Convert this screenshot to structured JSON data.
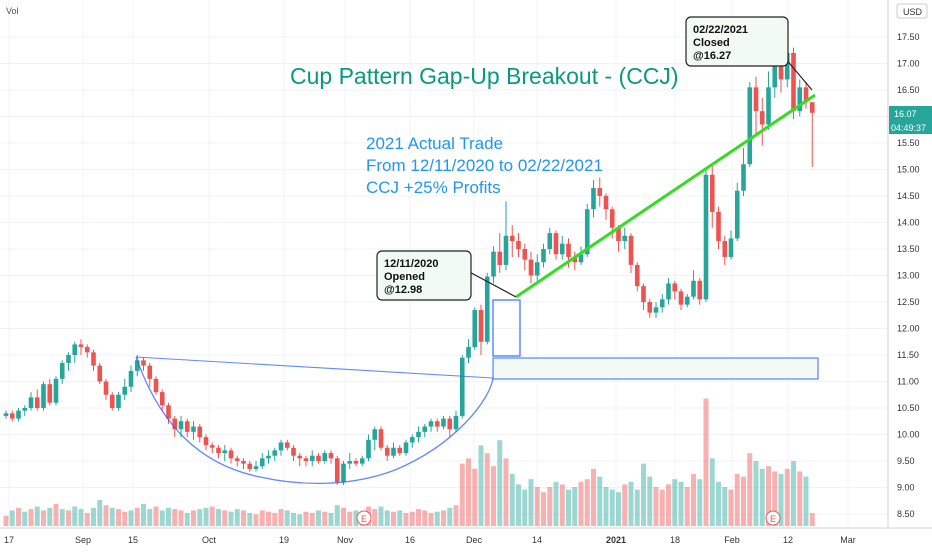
{
  "header": {
    "vol_label": "Vol",
    "currency": "USD"
  },
  "title": "Cup Pattern Gap-Up Breakout - (CCJ)",
  "trade_note": [
    "2021 Actual Trade",
    "From 12/11/2020 to 02/22/2021",
    "CCJ +25% Profits"
  ],
  "callout_open": [
    "12/11/2020",
    "Opened",
    "@12.98"
  ],
  "callout_close": [
    "02/22/2021",
    "Closed",
    "@16.27"
  ],
  "price_badge": "16.07",
  "countdown_badge": "04:49:37",
  "earnings_marker": "E",
  "colors": {
    "up": "#26a69a",
    "down": "#ef5350",
    "trend": "#33dd22",
    "note": "#2196f3",
    "title": "#089981",
    "badge": "#26a69a"
  },
  "chart_data": {
    "type": "candlestick",
    "ylim": [
      8.25,
      17.95
    ],
    "y_ticks": [
      "17.50",
      "17.00",
      "16.50",
      "16.00",
      "15.50",
      "15.00",
      "14.50",
      "14.00",
      "13.50",
      "13.00",
      "12.50",
      "12.00",
      "11.50",
      "11.00",
      "10.50",
      "10.00",
      "9.50",
      "9.00",
      "8.50"
    ],
    "x_ticks": [
      "17",
      "Sep",
      "15",
      "Oct",
      "19",
      "Nov",
      "16",
      "Dec",
      "14",
      "2021",
      "18",
      "Feb",
      "12",
      "Mar"
    ],
    "candles": [
      [
        10.35,
        10.4,
        10.3,
        10.45
      ],
      [
        10.4,
        10.3,
        10.25,
        10.45
      ],
      [
        10.3,
        10.45,
        10.25,
        10.5
      ],
      [
        10.45,
        10.5,
        10.35,
        10.55
      ],
      [
        10.5,
        10.7,
        10.45,
        10.8
      ],
      [
        10.7,
        10.5,
        10.45,
        10.85
      ],
      [
        10.5,
        10.95,
        10.45,
        11.0
      ],
      [
        10.95,
        10.6,
        10.55,
        11.05
      ],
      [
        10.6,
        11.05,
        10.55,
        11.1
      ],
      [
        11.05,
        11.35,
        10.95,
        11.4
      ],
      [
        11.35,
        11.5,
        11.2,
        11.55
      ],
      [
        11.5,
        11.7,
        11.35,
        11.75
      ],
      [
        11.7,
        11.65,
        11.5,
        11.8
      ],
      [
        11.65,
        11.55,
        11.45,
        11.7
      ],
      [
        11.55,
        11.3,
        11.2,
        11.6
      ],
      [
        11.3,
        11.0,
        10.95,
        11.35
      ],
      [
        11.0,
        10.75,
        10.65,
        11.05
      ],
      [
        10.75,
        10.5,
        10.45,
        10.8
      ],
      [
        10.5,
        10.75,
        10.45,
        10.8
      ],
      [
        10.75,
        10.9,
        10.65,
        11.05
      ],
      [
        10.9,
        11.2,
        10.8,
        11.3
      ],
      [
        11.2,
        11.4,
        11.1,
        11.5
      ],
      [
        11.4,
        11.3,
        11.2,
        11.45
      ],
      [
        11.3,
        11.05,
        10.9,
        11.35
      ],
      [
        11.05,
        10.8,
        10.75,
        11.1
      ],
      [
        10.8,
        10.55,
        10.45,
        10.85
      ],
      [
        10.55,
        10.3,
        10.2,
        10.6
      ],
      [
        10.3,
        10.1,
        9.95,
        10.35
      ],
      [
        10.1,
        10.25,
        9.95,
        10.35
      ],
      [
        10.25,
        10.05,
        9.95,
        10.3
      ],
      [
        10.05,
        10.15,
        9.9,
        10.25
      ],
      [
        10.15,
        9.95,
        9.85,
        10.2
      ],
      [
        9.95,
        9.8,
        9.7,
        10.0
      ],
      [
        9.8,
        9.75,
        9.65,
        9.85
      ],
      [
        9.75,
        9.65,
        9.55,
        9.8
      ],
      [
        9.65,
        9.7,
        9.5,
        9.8
      ],
      [
        9.7,
        9.55,
        9.45,
        9.75
      ],
      [
        9.55,
        9.5,
        9.4,
        9.6
      ],
      [
        9.5,
        9.45,
        9.35,
        9.55
      ],
      [
        9.45,
        9.35,
        9.3,
        9.5
      ],
      [
        9.35,
        9.4,
        9.3,
        9.5
      ],
      [
        9.4,
        9.55,
        9.35,
        9.65
      ],
      [
        9.55,
        9.6,
        9.45,
        9.7
      ],
      [
        9.6,
        9.7,
        9.5,
        9.75
      ],
      [
        9.7,
        9.85,
        9.6,
        9.9
      ],
      [
        9.85,
        9.75,
        9.7,
        9.9
      ],
      [
        9.75,
        9.6,
        9.5,
        9.8
      ],
      [
        9.6,
        9.55,
        9.4,
        9.65
      ],
      [
        9.55,
        9.5,
        9.4,
        9.6
      ],
      [
        9.5,
        9.6,
        9.4,
        9.7
      ],
      [
        9.6,
        9.5,
        9.45,
        9.65
      ],
      [
        9.5,
        9.65,
        9.45,
        9.7
      ],
      [
        9.65,
        9.55,
        9.45,
        9.7
      ],
      [
        9.55,
        9.1,
        9.05,
        9.6
      ],
      [
        9.1,
        9.45,
        9.05,
        9.5
      ],
      [
        9.45,
        9.5,
        9.35,
        9.65
      ],
      [
        9.5,
        9.45,
        9.4,
        9.55
      ],
      [
        9.45,
        9.55,
        9.4,
        9.6
      ],
      [
        9.55,
        9.9,
        9.5,
        10.0
      ],
      [
        9.9,
        10.1,
        9.7,
        10.15
      ],
      [
        10.1,
        9.75,
        9.7,
        10.15
      ],
      [
        9.75,
        9.6,
        9.5,
        9.8
      ],
      [
        9.6,
        9.75,
        9.55,
        9.85
      ],
      [
        9.75,
        9.65,
        9.6,
        9.8
      ],
      [
        9.65,
        9.85,
        9.6,
        9.9
      ],
      [
        9.85,
        9.95,
        9.75,
        10.0
      ],
      [
        9.95,
        10.05,
        9.85,
        10.15
      ],
      [
        10.05,
        10.15,
        9.95,
        10.2
      ],
      [
        10.15,
        10.25,
        10.05,
        10.3
      ],
      [
        10.25,
        10.15,
        10.05,
        10.3
      ],
      [
        10.15,
        10.3,
        10.1,
        10.35
      ],
      [
        10.3,
        10.1,
        9.95,
        10.35
      ],
      [
        10.1,
        10.35,
        10.05,
        10.45
      ],
      [
        10.35,
        11.45,
        10.3,
        11.5
      ],
      [
        11.45,
        11.65,
        11.35,
        11.8
      ],
      [
        11.65,
        12.35,
        11.6,
        12.4
      ],
      [
        12.35,
        11.75,
        11.5,
        12.45
      ],
      [
        11.75,
        12.98,
        11.7,
        13.05
      ],
      [
        12.98,
        13.45,
        12.85,
        13.55
      ],
      [
        13.45,
        13.2,
        13.05,
        13.8
      ],
      [
        13.2,
        13.75,
        13.1,
        14.4
      ],
      [
        13.75,
        13.65,
        13.35,
        13.95
      ],
      [
        13.65,
        13.5,
        13.35,
        13.8
      ],
      [
        13.5,
        13.3,
        13.1,
        13.6
      ],
      [
        13.3,
        13.0,
        12.85,
        13.45
      ],
      [
        13.0,
        13.25,
        12.9,
        13.4
      ],
      [
        13.25,
        13.5,
        13.15,
        13.6
      ],
      [
        13.5,
        13.8,
        13.4,
        13.9
      ],
      [
        13.8,
        13.4,
        13.3,
        13.85
      ],
      [
        13.4,
        13.6,
        13.3,
        13.75
      ],
      [
        13.6,
        13.35,
        13.15,
        13.7
      ],
      [
        13.35,
        13.25,
        13.1,
        13.45
      ],
      [
        13.25,
        13.4,
        13.2,
        13.55
      ],
      [
        13.4,
        14.25,
        13.35,
        14.35
      ],
      [
        14.25,
        14.65,
        14.1,
        14.8
      ],
      [
        14.65,
        14.5,
        14.3,
        14.85
      ],
      [
        14.5,
        14.25,
        14.05,
        14.55
      ],
      [
        14.25,
        13.9,
        13.7,
        14.3
      ],
      [
        13.9,
        13.65,
        13.45,
        13.95
      ],
      [
        13.65,
        13.75,
        13.5,
        13.9
      ],
      [
        13.75,
        13.2,
        13.05,
        13.8
      ],
      [
        13.2,
        12.8,
        12.7,
        13.25
      ],
      [
        12.8,
        12.5,
        12.35,
        12.85
      ],
      [
        12.5,
        12.3,
        12.2,
        12.55
      ],
      [
        12.3,
        12.4,
        12.2,
        12.5
      ],
      [
        12.4,
        12.55,
        12.3,
        12.65
      ],
      [
        12.55,
        12.85,
        12.45,
        12.95
      ],
      [
        12.85,
        12.7,
        12.55,
        12.9
      ],
      [
        12.7,
        12.45,
        12.35,
        12.75
      ],
      [
        12.45,
        12.6,
        12.4,
        12.65
      ],
      [
        12.6,
        12.9,
        12.55,
        13.1
      ],
      [
        12.9,
        12.55,
        12.45,
        12.95
      ],
      [
        12.55,
        14.9,
        12.5,
        15.0
      ],
      [
        14.9,
        14.2,
        13.9,
        15.1
      ],
      [
        14.2,
        13.65,
        13.5,
        14.3
      ],
      [
        13.65,
        13.35,
        13.2,
        13.75
      ],
      [
        13.35,
        13.7,
        13.3,
        13.85
      ],
      [
        13.7,
        14.6,
        13.65,
        14.75
      ],
      [
        14.6,
        15.1,
        14.5,
        15.4
      ],
      [
        15.1,
        16.55,
        15.05,
        16.65
      ],
      [
        16.55,
        16.1,
        15.65,
        16.75
      ],
      [
        16.1,
        15.85,
        15.45,
        16.35
      ],
      [
        15.85,
        16.55,
        15.75,
        16.85
      ],
      [
        16.55,
        16.95,
        16.35,
        17.1
      ],
      [
        16.95,
        16.7,
        16.45,
        17.2
      ],
      [
        16.7,
        17.2,
        16.55,
        17.25
      ],
      [
        17.2,
        16.1,
        15.95,
        17.3
      ],
      [
        16.1,
        16.55,
        16.0,
        16.7
      ],
      [
        16.55,
        16.27,
        16.15,
        16.65
      ],
      [
        16.27,
        16.07,
        15.05,
        16.2
      ]
    ],
    "volume": [
      [
        0.08,
        false
      ],
      [
        0.12,
        true
      ],
      [
        0.14,
        false
      ],
      [
        0.11,
        true
      ],
      [
        0.13,
        false
      ],
      [
        0.15,
        true
      ],
      [
        0.12,
        false
      ],
      [
        0.14,
        true
      ],
      [
        0.17,
        false
      ],
      [
        0.13,
        true
      ],
      [
        0.12,
        false
      ],
      [
        0.15,
        true
      ],
      [
        0.13,
        true
      ],
      [
        0.1,
        false
      ],
      [
        0.14,
        true
      ],
      [
        0.2,
        true
      ],
      [
        0.16,
        false
      ],
      [
        0.14,
        true
      ],
      [
        0.13,
        false
      ],
      [
        0.11,
        false
      ],
      [
        0.12,
        true
      ],
      [
        0.14,
        false
      ],
      [
        0.17,
        true
      ],
      [
        0.13,
        true
      ],
      [
        0.15,
        false
      ],
      [
        0.12,
        true
      ],
      [
        0.14,
        true
      ],
      [
        0.13,
        false
      ],
      [
        0.12,
        false
      ],
      [
        0.1,
        true
      ],
      [
        0.12,
        false
      ],
      [
        0.13,
        true
      ],
      [
        0.14,
        true
      ],
      [
        0.15,
        false
      ],
      [
        0.13,
        true
      ],
      [
        0.12,
        false
      ],
      [
        0.11,
        true
      ],
      [
        0.13,
        true
      ],
      [
        0.12,
        false
      ],
      [
        0.1,
        true
      ],
      [
        0.09,
        false
      ],
      [
        0.12,
        false
      ],
      [
        0.11,
        false
      ],
      [
        0.1,
        false
      ],
      [
        0.13,
        false
      ],
      [
        0.12,
        true
      ],
      [
        0.1,
        true
      ],
      [
        0.09,
        true
      ],
      [
        0.11,
        false
      ],
      [
        0.1,
        false
      ],
      [
        0.12,
        true
      ],
      [
        0.11,
        false
      ],
      [
        0.1,
        true
      ],
      [
        0.16,
        true
      ],
      [
        0.14,
        false
      ],
      [
        0.11,
        false
      ],
      [
        0.12,
        true
      ],
      [
        0.1,
        false
      ],
      [
        0.15,
        false
      ],
      [
        0.13,
        false
      ],
      [
        0.15,
        true
      ],
      [
        0.12,
        true
      ],
      [
        0.11,
        false
      ],
      [
        0.12,
        true
      ],
      [
        0.1,
        false
      ],
      [
        0.11,
        false
      ],
      [
        0.13,
        false
      ],
      [
        0.12,
        false
      ],
      [
        0.1,
        false
      ],
      [
        0.11,
        true
      ],
      [
        0.12,
        false
      ],
      [
        0.14,
        true
      ],
      [
        0.16,
        false
      ],
      [
        0.48,
        false
      ],
      [
        0.52,
        false
      ],
      [
        0.44,
        false
      ],
      [
        0.62,
        true
      ],
      [
        0.56,
        false
      ],
      [
        0.46,
        false
      ],
      [
        0.66,
        true
      ],
      [
        0.52,
        false
      ],
      [
        0.4,
        true
      ],
      [
        0.32,
        true
      ],
      [
        0.28,
        true
      ],
      [
        0.36,
        true
      ],
      [
        0.3,
        false
      ],
      [
        0.26,
        false
      ],
      [
        0.3,
        false
      ],
      [
        0.34,
        true
      ],
      [
        0.32,
        false
      ],
      [
        0.28,
        true
      ],
      [
        0.3,
        true
      ],
      [
        0.34,
        false
      ],
      [
        0.36,
        false
      ],
      [
        0.44,
        false
      ],
      [
        0.38,
        true
      ],
      [
        0.3,
        true
      ],
      [
        0.28,
        true
      ],
      [
        0.26,
        true
      ],
      [
        0.32,
        false
      ],
      [
        0.34,
        true
      ],
      [
        0.28,
        true
      ],
      [
        0.48,
        true
      ],
      [
        0.38,
        true
      ],
      [
        0.3,
        false
      ],
      [
        0.28,
        false
      ],
      [
        0.32,
        false
      ],
      [
        0.36,
        true
      ],
      [
        0.34,
        true
      ],
      [
        0.3,
        false
      ],
      [
        0.4,
        false
      ],
      [
        0.36,
        true
      ],
      [
        0.98,
        false
      ],
      [
        0.52,
        true
      ],
      [
        0.34,
        true
      ],
      [
        0.3,
        true
      ],
      [
        0.28,
        false
      ],
      [
        0.4,
        false
      ],
      [
        0.38,
        false
      ],
      [
        0.56,
        false
      ],
      [
        0.5,
        true
      ],
      [
        0.44,
        true
      ],
      [
        0.46,
        false
      ],
      [
        0.42,
        false
      ],
      [
        0.4,
        true
      ],
      [
        0.44,
        false
      ],
      [
        0.5,
        true
      ],
      [
        0.42,
        false
      ],
      [
        0.38,
        true
      ],
      [
        0.1,
        false
      ]
    ]
  }
}
